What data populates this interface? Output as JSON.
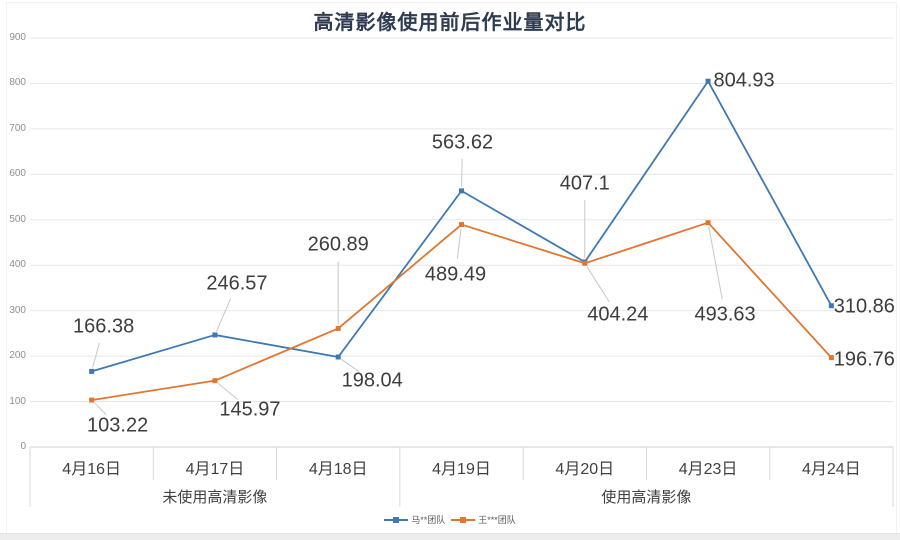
{
  "title": "高清影像使用前后作业量对比",
  "chart_data": {
    "type": "line",
    "title": "高清影像使用前后作业量对比",
    "categories": [
      "4月16日",
      "4月17日",
      "4月18日",
      "4月19日",
      "4月20日",
      "4月23日",
      "4月24日"
    ],
    "category_groups": [
      {
        "label": "未使用高清影像",
        "span": [
          0,
          2
        ]
      },
      {
        "label": "使用高清影像",
        "span": [
          3,
          6
        ]
      }
    ],
    "series": [
      {
        "name": "马**团队",
        "color": "#3e79b4",
        "values": [
          166.38,
          246.57,
          198.04,
          563.62,
          407.1,
          804.93,
          310.86
        ],
        "labels": [
          "166.38",
          "246.57",
          "198.04",
          "563.62",
          "407.1",
          "804.93",
          "310.86"
        ],
        "label_offsets": [
          [
            12,
            -44
          ],
          [
            22,
            -51
          ],
          [
            34,
            24
          ],
          [
            1,
            -48
          ],
          [
            0,
            -78
          ],
          [
            36,
            0
          ],
          [
            33,
            1
          ]
        ],
        "label_leaders": [
          true,
          true,
          true,
          true,
          true,
          false,
          false
        ]
      },
      {
        "name": "王***团队",
        "color": "#e0762f",
        "values": [
          103.22,
          145.97,
          260.89,
          489.49,
          404.24,
          493.63,
          196.76
        ],
        "labels": [
          "103.22",
          "145.97",
          "260.89",
          "489.49",
          "404.24",
          "493.63",
          "196.76"
        ],
        "label_offsets": [
          [
            26,
            26
          ],
          [
            35,
            29
          ],
          [
            0,
            -83
          ],
          [
            -6,
            50
          ],
          [
            33,
            52
          ],
          [
            17,
            92
          ],
          [
            33,
            2
          ]
        ],
        "label_leaders": [
          true,
          true,
          true,
          true,
          true,
          true,
          false
        ]
      }
    ],
    "y_axis": {
      "min": 0,
      "max": 900,
      "step": 100,
      "tick_labels": [
        "0",
        "100",
        "200",
        "300",
        "400",
        "500",
        "600",
        "700",
        "800",
        "900"
      ]
    },
    "grid": true,
    "legend_position": "bottom",
    "marker": "square"
  }
}
